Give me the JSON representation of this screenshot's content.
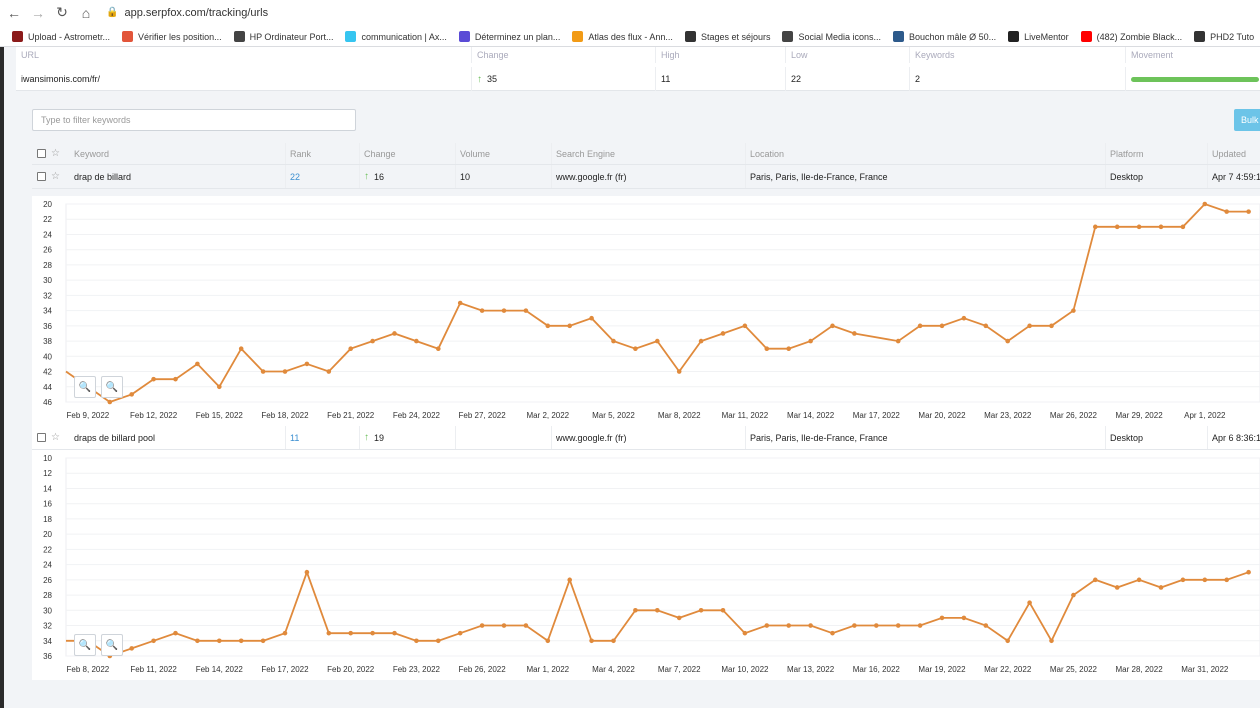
{
  "browser": {
    "url": "app.serpfox.com/tracking/urls",
    "bookmarks": [
      {
        "label": "Upload - Astrometr...",
        "color": "#8b1a1a"
      },
      {
        "label": "Vérifier les position...",
        "color": "#e2553a"
      },
      {
        "label": "HP Ordinateur Port...",
        "color": "#444444"
      },
      {
        "label": "communication | Ax...",
        "color": "#36c5f0"
      },
      {
        "label": "Déterminez un plan...",
        "color": "#5a4bd6"
      },
      {
        "label": "Atlas des flux - Ann...",
        "color": "#f29b16"
      },
      {
        "label": "Stages et séjours",
        "color": "#333333"
      },
      {
        "label": "Social Media icons...",
        "color": "#444444"
      },
      {
        "label": "Bouchon mâle Ø 50...",
        "color": "#2d5a8b"
      },
      {
        "label": "LiveMentor",
        "color": "#222222"
      },
      {
        "label": "(482) Zombie Black...",
        "color": "#ff0000"
      },
      {
        "label": "PHD2 Tuto",
        "color": "#333333"
      }
    ]
  },
  "url_table": {
    "headers": [
      "URL",
      "Change",
      "High",
      "Low",
      "Keywords",
      "Movement"
    ],
    "row": {
      "url": "iwansimonis.com/fr/",
      "change": "35",
      "high": "11",
      "low": "22",
      "keywords": "2",
      "movement_fraction": 1.0
    }
  },
  "filter": {
    "placeholder": "Type to filter keywords"
  },
  "bulk_label": "Bulk",
  "keyword_table": {
    "headers": [
      "Keyword",
      "Rank",
      "Change",
      "Volume",
      "Search Engine",
      "Location",
      "Platform",
      "Updated"
    ],
    "rows": [
      {
        "keyword": "drap de billard",
        "rank": "22",
        "change": "16",
        "volume": "10",
        "engine": "www.google.fr (fr)",
        "location": "Paris, Paris, Ile-de-France, France",
        "platform": "Desktop",
        "updated": "Apr 7 4:59:1"
      },
      {
        "keyword": "draps de billard pool",
        "rank": "11",
        "change": "19",
        "volume": "",
        "engine": "www.google.fr (fr)",
        "location": "Paris, Paris, Ile-de-France, France",
        "platform": "Desktop",
        "updated": "Apr 6 8:36:1"
      }
    ]
  },
  "chart_data": [
    {
      "type": "line",
      "series_color": "#e08a3c",
      "y_reversed": true,
      "ylim": [
        20,
        46
      ],
      "y_ticks": [
        "20",
        "22",
        "24",
        "26",
        "28",
        "30",
        "32",
        "34",
        "36",
        "38",
        "40",
        "42",
        "44",
        "46"
      ],
      "x_ticks": [
        "Feb 9, 2022",
        "Feb 12, 2022",
        "Feb 15, 2022",
        "Feb 18, 2022",
        "Feb 21, 2022",
        "Feb 24, 2022",
        "Feb 27, 2022",
        "Mar 2, 2022",
        "Mar 5, 2022",
        "Mar 8, 2022",
        "Mar 11, 2022",
        "Mar 14, 2022",
        "Mar 17, 2022",
        "Mar 20, 2022",
        "Mar 23, 2022",
        "Mar 26, 2022",
        "Mar 29, 2022",
        "Apr 1, 2022"
      ],
      "x_start": "2022-02-07",
      "values": [
        42,
        44,
        46,
        45,
        43,
        43,
        41,
        44,
        39,
        42,
        42,
        41,
        42,
        39,
        38,
        37,
        38,
        39,
        33,
        34,
        34,
        34,
        36,
        36,
        35,
        38,
        39,
        38,
        42,
        38,
        37,
        36,
        39,
        39,
        38,
        36,
        37,
        null,
        38,
        36,
        36,
        35,
        36,
        38,
        36,
        36,
        34,
        23,
        23,
        23,
        23,
        23,
        20,
        21,
        21
      ]
    },
    {
      "type": "line",
      "series_color": "#e08a3c",
      "y_reversed": true,
      "ylim": [
        10,
        36
      ],
      "y_ticks": [
        "10",
        "12",
        "14",
        "16",
        "18",
        "20",
        "22",
        "24",
        "26",
        "28",
        "30",
        "32",
        "34",
        "36"
      ],
      "x_ticks": [
        "Feb 8, 2022",
        "Feb 11, 2022",
        "Feb 14, 2022",
        "Feb 17, 2022",
        "Feb 20, 2022",
        "Feb 23, 2022",
        "Feb 26, 2022",
        "Mar 1, 2022",
        "Mar 4, 2022",
        "Mar 7, 2022",
        "Mar 10, 2022",
        "Mar 13, 2022",
        "Mar 16, 2022",
        "Mar 19, 2022",
        "Mar 22, 2022",
        "Mar 25, 2022",
        "Mar 28, 2022",
        "Mar 31, 2022"
      ],
      "x_start": "2022-02-06",
      "values": [
        34,
        34,
        36,
        35,
        34,
        33,
        34,
        34,
        34,
        34,
        33,
        25,
        33,
        33,
        33,
        33,
        34,
        34,
        33,
        32,
        32,
        32,
        34,
        26,
        34,
        34,
        30,
        30,
        31,
        30,
        30,
        33,
        32,
        32,
        32,
        33,
        32,
        32,
        32,
        32,
        31,
        31,
        32,
        34,
        29,
        34,
        28,
        26,
        27,
        26,
        27,
        26,
        26,
        26,
        25
      ]
    }
  ]
}
